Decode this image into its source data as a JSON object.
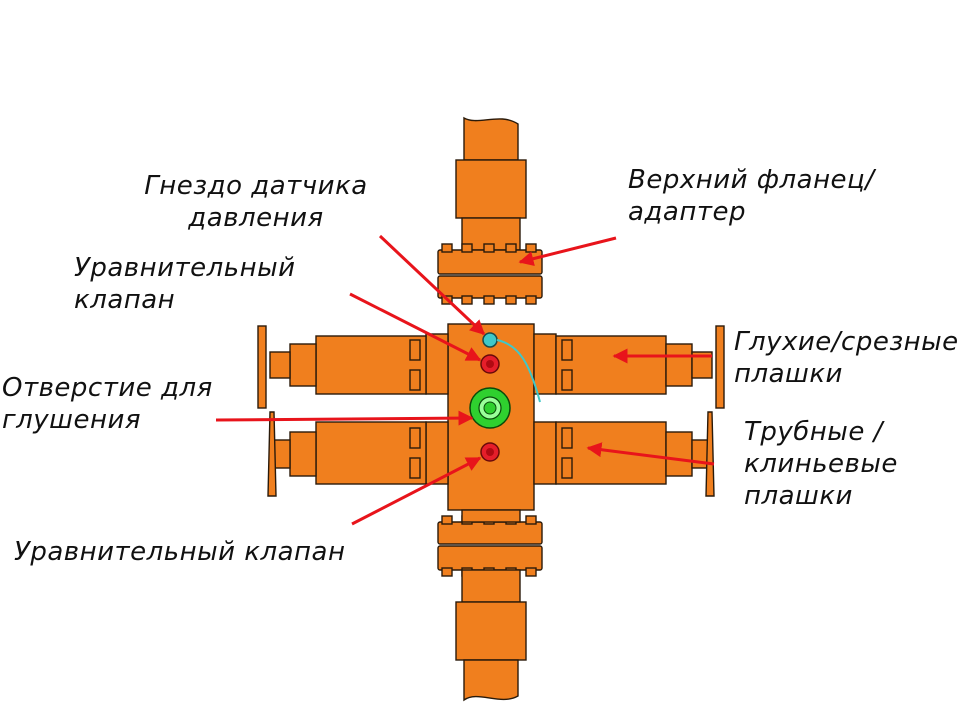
{
  "labels": {
    "pressure_port": [
      "Гнездо датчика",
      "давления"
    ],
    "top_flange": [
      "Верхний фланец/",
      "адаптер"
    ],
    "equalizing_valve_top": [
      "Уравнительный",
      "клапан"
    ],
    "blind_shear_rams": [
      "Глухие/срезные",
      "плашки"
    ],
    "kill_line_outlet": [
      "Отверстие для",
      "глушения"
    ],
    "pipe_slip_rams": [
      "Трубные /",
      "клиньевые",
      "плашки"
    ],
    "equalizing_valve_bottom": [
      "Уравнительный клапан"
    ]
  },
  "colors": {
    "body": "#f07f1e",
    "body_dark": "#c35e0c",
    "outline": "#2a1a0a",
    "arrow": "#e8141b",
    "kill_port": "#2fd02f",
    "sensor": "#40c8c8",
    "valve": "#e61e2a"
  }
}
